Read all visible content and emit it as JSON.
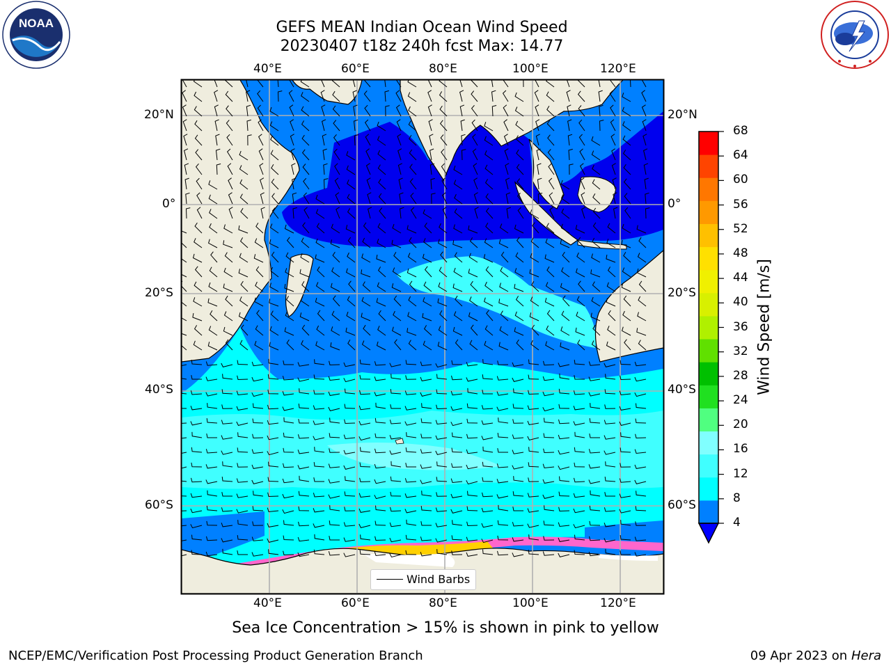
{
  "header": {
    "title_line1": "GEFS MEAN Indian Ocean Wind Speed",
    "title_line2": "20230407 t18z 240h fcst   Max: 14.77"
  },
  "logos": {
    "left": {
      "icon": "noaa-logo",
      "text": "NOAA",
      "ring_text": "NATIONAL OCEANIC AND ATMOSPHERIC ADMINISTRATION · U.S. DEPARTMENT OF COMMERCE"
    },
    "right": {
      "icon": "nws-logo",
      "ring_text": "NATIONAL WEATHER SERVICE"
    }
  },
  "map": {
    "top_lon_ticks": [
      "40°E",
      "60°E",
      "80°E",
      "100°E",
      "120°E"
    ],
    "bottom_lon_ticks": [
      "40°E",
      "60°E",
      "80°E",
      "100°E",
      "120°E"
    ],
    "left_lat_ticks": [
      "20°N",
      "0°",
      "20°S",
      "40°S",
      "60°S"
    ],
    "right_lat_ticks": [
      "20°N",
      "0°",
      "20°S",
      "40°S",
      "60°S"
    ],
    "legend_label": "Wind Barbs",
    "colors": {
      "land": "#efedde",
      "band_4_8": "#0080ff",
      "band_lt4": "#0000ee",
      "band_8_12": "#00ffff",
      "band_12_16": "#40ffff",
      "band_16_20": "#80ffff",
      "sea_ice_pink": "#ff66cc",
      "sea_ice_yellow": "#ffd000"
    }
  },
  "colorbar": {
    "label": "Wind Speed [m/s]",
    "ticks": [
      "4",
      "8",
      "12",
      "16",
      "20",
      "24",
      "28",
      "32",
      "36",
      "40",
      "44",
      "48",
      "52",
      "56",
      "60",
      "64",
      "68"
    ],
    "colors": [
      "#0080ff",
      "#00ffff",
      "#40ffff",
      "#80ffff",
      "#50ff80",
      "#20e020",
      "#00c000",
      "#60e000",
      "#b0f000",
      "#d8f000",
      "#f0f000",
      "#ffe000",
      "#ffc000",
      "#ff9900",
      "#ff7700",
      "#ff4400",
      "#ff0000"
    ],
    "extend_color": "#0000ff"
  },
  "caption": "Sea Ice Concentration > 15% is shown in pink to yellow",
  "footer": {
    "left": "NCEP/EMC/Verification Post Processing Product Generation Branch",
    "right_date": "09 Apr 2023 on",
    "right_machine": "Hera"
  }
}
